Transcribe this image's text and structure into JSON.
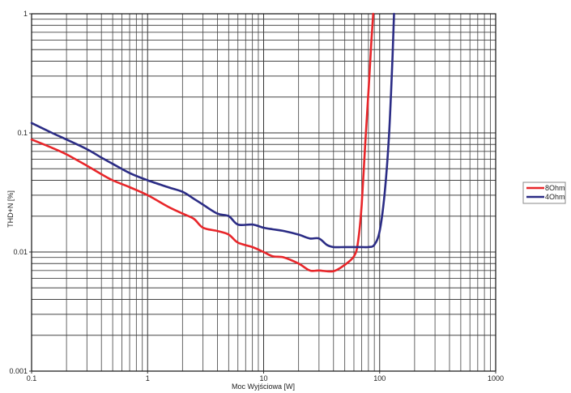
{
  "chart_data": {
    "type": "line",
    "title": "",
    "xlabel": "Moc Wyjściowa [W]",
    "ylabel": "THD+N [%]",
    "xscale": "log",
    "yscale": "log",
    "xlim": [
      0.1,
      1000
    ],
    "ylim": [
      0.001,
      1
    ],
    "x_ticks": [
      "0.1",
      "1",
      "10",
      "100",
      "1000"
    ],
    "y_ticks": [
      "0.001",
      "0.01",
      "0.1",
      "1"
    ],
    "grid": true,
    "legend_position": "right",
    "series": [
      {
        "name": "8Ohm",
        "color": "#e8262a",
        "x": [
          0.1,
          0.15,
          0.2,
          0.3,
          0.4,
          0.5,
          0.7,
          1,
          1.5,
          2,
          2.5,
          3,
          4,
          5,
          6,
          8,
          10,
          12,
          15,
          20,
          25,
          30,
          40,
          50,
          60,
          65,
          70,
          75,
          80,
          85,
          88
        ],
        "y": [
          0.088,
          0.075,
          0.066,
          0.053,
          0.045,
          0.04,
          0.035,
          0.03,
          0.024,
          0.021,
          0.019,
          0.016,
          0.015,
          0.014,
          0.012,
          0.011,
          0.01,
          0.0092,
          0.009,
          0.008,
          0.007,
          0.007,
          0.0069,
          0.0078,
          0.0092,
          0.012,
          0.025,
          0.08,
          0.22,
          0.6,
          1.0
        ]
      },
      {
        "name": "4Ohm",
        "color": "#2b2c85",
        "x": [
          0.1,
          0.15,
          0.2,
          0.3,
          0.4,
          0.5,
          0.7,
          1,
          1.5,
          2,
          2.5,
          3,
          4,
          5,
          6,
          8,
          10,
          12,
          15,
          20,
          25,
          30,
          35,
          40,
          50,
          60,
          70,
          80,
          90,
          100,
          110,
          120,
          128,
          133
        ],
        "y": [
          0.121,
          0.1,
          0.088,
          0.073,
          0.062,
          0.055,
          0.046,
          0.04,
          0.035,
          0.032,
          0.028,
          0.025,
          0.021,
          0.02,
          0.017,
          0.017,
          0.016,
          0.0155,
          0.015,
          0.014,
          0.013,
          0.013,
          0.0115,
          0.011,
          0.011,
          0.011,
          0.011,
          0.011,
          0.0115,
          0.015,
          0.03,
          0.09,
          0.35,
          1.0
        ]
      }
    ]
  },
  "legend": {
    "items": [
      {
        "label": "8Ohm",
        "color": "#e8262a"
      },
      {
        "label": "4Ohm",
        "color": "#2b2c85"
      }
    ]
  },
  "axes": {
    "xlabel": "Moc Wyjściowa [W]",
    "ylabel": "THD+N [%]"
  }
}
